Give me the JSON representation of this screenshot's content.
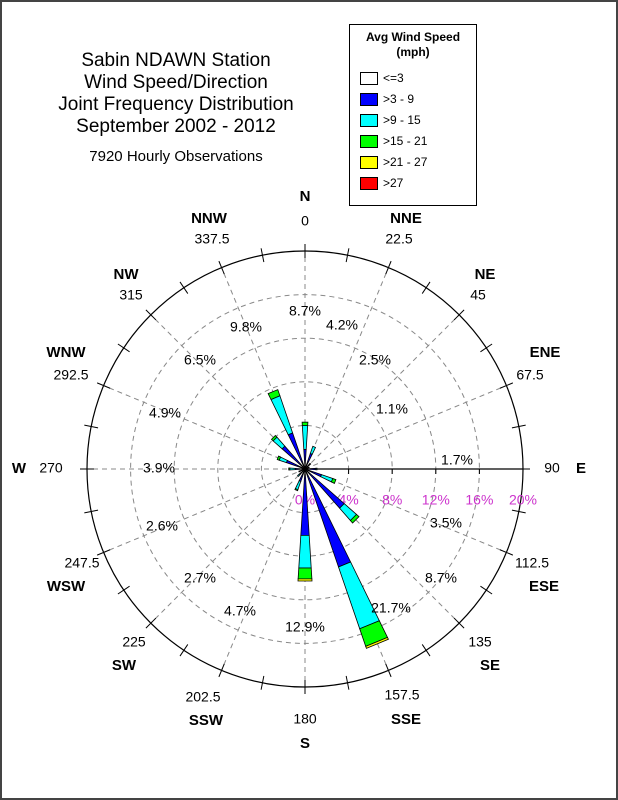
{
  "title_lines": [
    "Sabin NDAWN Station",
    "Wind Speed/Direction",
    "Joint Frequency Distribution",
    "September 2002 - 2012"
  ],
  "observations": "7920 Hourly Observations",
  "legend": {
    "title_line1": "Avg Wind Speed",
    "title_line2": "(mph)",
    "items": [
      {
        "label": "<=3",
        "color": "#ffffff"
      },
      {
        "label": ">3 - 9",
        "color": "#0000ff"
      },
      {
        "label": ">9 - 15",
        "color": "#00ffff"
      },
      {
        "label": ">15 - 21",
        "color": "#00ff00"
      },
      {
        "label": ">21 - 27",
        "color": "#ffff00"
      },
      {
        "label": ">27",
        "color": "#ff0000"
      }
    ]
  },
  "chart_data": {
    "type": "wind-rose",
    "radial_unit": "%",
    "radial_ticks": [
      "0%",
      "4%",
      "8%",
      "12%",
      "16%",
      "20%"
    ],
    "radial_max": 20,
    "tick_label_color": "#cc33cc",
    "speed_bins": [
      "<=3",
      ">3 - 9",
      ">9 - 15",
      ">15 - 21",
      ">21 - 27",
      ">27"
    ],
    "directions": [
      {
        "name": "N",
        "degrees": "0",
        "avg_speed": "8.7%",
        "values": [
          0,
          1.8,
          2.2,
          0.3,
          0,
          0
        ]
      },
      {
        "name": "NNE",
        "degrees": "22.5",
        "avg_speed": "4.2%",
        "values": [
          0,
          1.5,
          0.7,
          0,
          0,
          0
        ]
      },
      {
        "name": "NE",
        "degrees": "45",
        "avg_speed": "2.5%",
        "values": [
          0,
          0.6,
          0.1,
          0,
          0,
          0
        ]
      },
      {
        "name": "ENE",
        "degrees": "67.5",
        "avg_speed": "1.1%",
        "values": [
          0,
          0.4,
          0,
          0,
          0,
          0
        ]
      },
      {
        "name": "E",
        "degrees": "90",
        "avg_speed": "1.7%",
        "values": [
          0,
          1.0,
          0.1,
          0,
          0,
          0
        ]
      },
      {
        "name": "ESE",
        "degrees": "112.5",
        "avg_speed": "3.5%",
        "values": [
          0,
          1.6,
          1.1,
          0.3,
          0,
          0
        ]
      },
      {
        "name": "SE",
        "degrees": "135",
        "avg_speed": "8.7%",
        "values": [
          0,
          4.8,
          1.5,
          0.3,
          0,
          0
        ]
      },
      {
        "name": "SSE",
        "degrees": "157.5",
        "avg_speed": "21.7%",
        "values": [
          0,
          9.5,
          6.0,
          1.7,
          0.2,
          0
        ]
      },
      {
        "name": "S",
        "degrees": "180",
        "avg_speed": "12.9%",
        "values": [
          0,
          6.1,
          3.0,
          1.0,
          0.2,
          0
        ]
      },
      {
        "name": "SSW",
        "degrees": "202.5",
        "avg_speed": "4.7%",
        "values": [
          0,
          1.2,
          0.8,
          0.1,
          0,
          0
        ]
      },
      {
        "name": "SW",
        "degrees": "225",
        "avg_speed": "2.7%",
        "values": [
          0,
          0.7,
          0.2,
          0,
          0,
          0
        ]
      },
      {
        "name": "WSW",
        "degrees": "247.5",
        "avg_speed": "2.6%",
        "values": [
          0,
          0.5,
          0.1,
          0,
          0,
          0
        ]
      },
      {
        "name": "W",
        "degrees": "270",
        "avg_speed": "3.9%",
        "values": [
          0,
          0.9,
          0.5,
          0.1,
          0,
          0
        ]
      },
      {
        "name": "WNW",
        "degrees": "292.5",
        "avg_speed": "4.9%",
        "values": [
          0,
          1.8,
          0.7,
          0.2,
          0,
          0
        ]
      },
      {
        "name": "NW",
        "degrees": "315",
        "avg_speed": "6.5%",
        "values": [
          0,
          2.8,
          1.1,
          0.2,
          0,
          0
        ]
      },
      {
        "name": "NNW",
        "degrees": "337.5",
        "avg_speed": "9.8%",
        "values": [
          0,
          3.5,
          3.6,
          0.6,
          0,
          0
        ]
      }
    ]
  }
}
